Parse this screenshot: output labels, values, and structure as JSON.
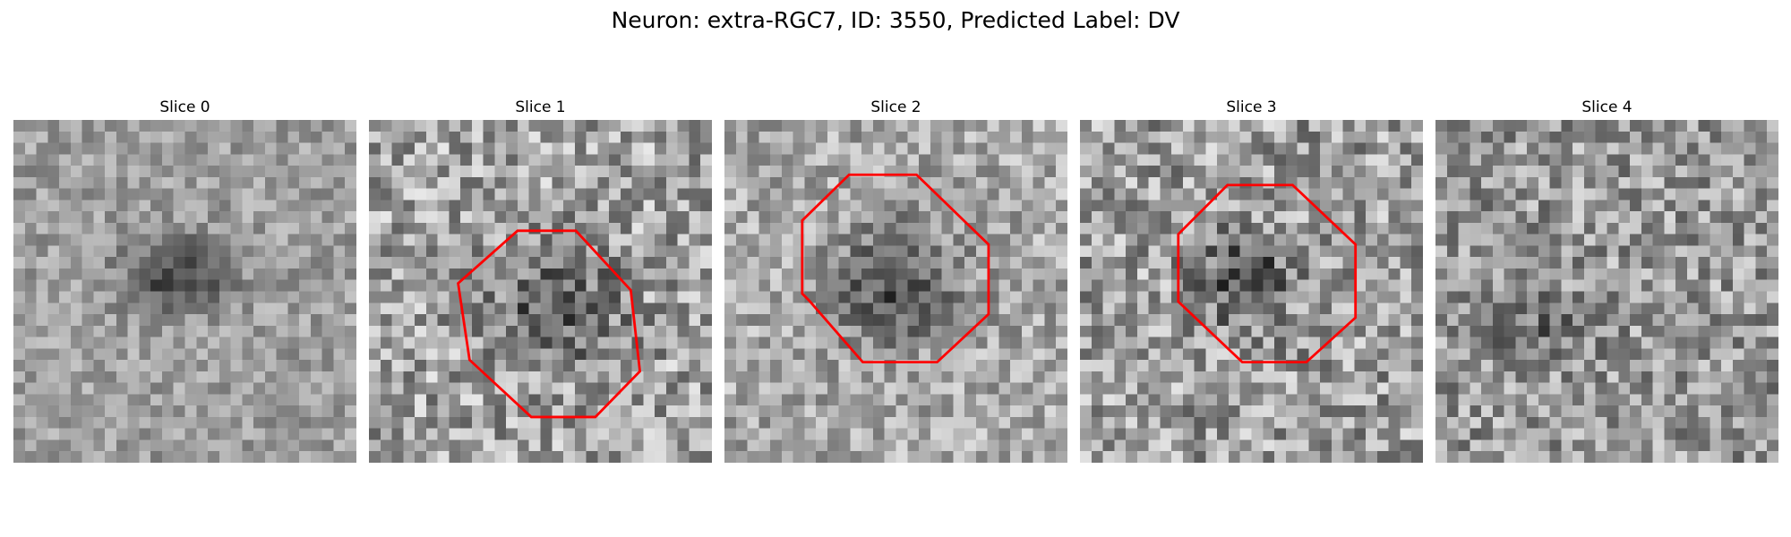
{
  "figure": {
    "title": "Neuron: extra-RGC7, ID: 3550, Predicted Label: DV"
  },
  "panels": [
    {
      "title": "Slice 0",
      "has_roi": false,
      "contrast": "low"
    },
    {
      "title": "Slice 1",
      "has_roi": true,
      "contrast": "high"
    },
    {
      "title": "Slice 2",
      "has_roi": true,
      "contrast": "medium"
    },
    {
      "title": "Slice 3",
      "has_roi": true,
      "contrast": "high"
    },
    {
      "title": "Slice 4",
      "has_roi": false,
      "contrast": "high"
    }
  ],
  "colors": {
    "roi_outline": "#ff0000",
    "background": "#ffffff"
  },
  "image": {
    "colormap": "grayscale",
    "grid": 30
  }
}
